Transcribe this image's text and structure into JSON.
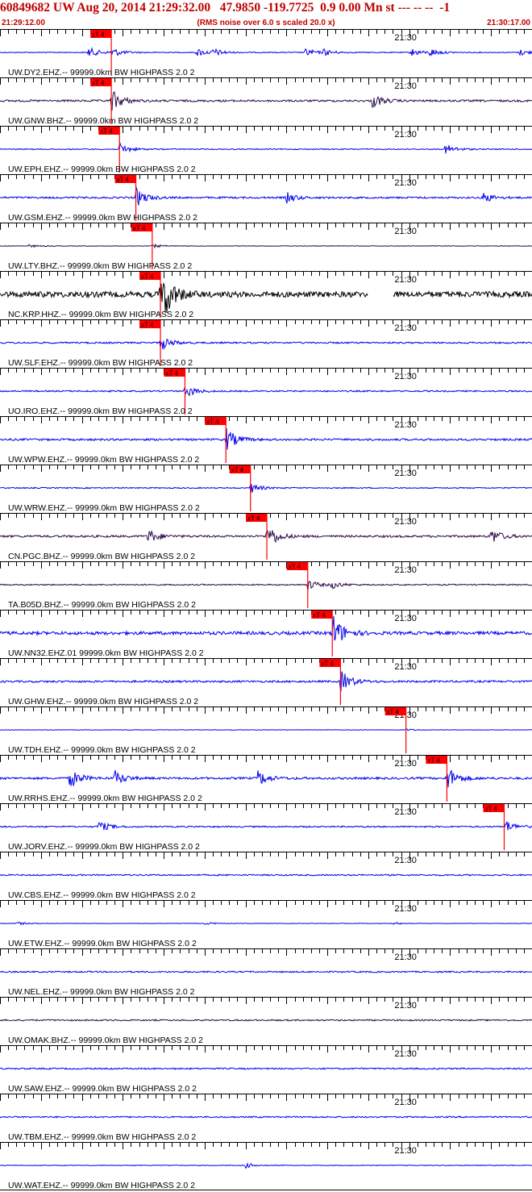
{
  "header": {
    "title": "60849682 UW Aug 20, 2014 21:29:32.00   47.9850 -119.7725  0.9 0.00 Mn st --- -- --  -1",
    "start_time": "21:29:12.00",
    "note": "(RMS noise over 6.0 s scaled 20.0 x)",
    "end_time": "21:30:17.00"
  },
  "colors": {
    "header_text": "#c00000",
    "pick_marker": "#ff0000",
    "trace_blue": "#0000ee",
    "trace_purple": "#2a0a4a",
    "trace_black": "#000000",
    "grid": "#000000"
  },
  "chart_data": {
    "type": "line",
    "title": "60849682 UW Aug 20, 2014 21:29:32.00   47.9850 -119.7725  0.9 0.00 Mn st --- -- --  -1",
    "x_unit": "seconds after 21:29:12.00",
    "xlim": [
      0,
      65
    ],
    "time_marker": {
      "label": "21:30",
      "x": 48
    },
    "tick_interval_s": 1,
    "grid": true,
    "pick_label": "xT 4",
    "series": [
      {
        "name": "UW.DY2.EHZ.-- 99999.0km BW  HIGHPASS  2.0  2",
        "color": "#0000ee",
        "pick_s": 13.6,
        "amp": 0.25,
        "events": [
          [
            10.8,
            1.0
          ],
          [
            13.6,
            0.9
          ],
          [
            24.0,
            0.8
          ],
          [
            26.0,
            0.7
          ],
          [
            37.3,
            0.8
          ],
          [
            39.5,
            0.6
          ],
          [
            50.2,
            0.8
          ],
          [
            52.5,
            0.7
          ],
          [
            63.5,
            0.6
          ]
        ]
      },
      {
        "name": "UW.GNW.BHZ.-- 99999.0km BW  HIGHPASS  2.0  2",
        "color": "#2a0a4a",
        "pick_s": 13.6,
        "amp": 0.55,
        "events": [
          [
            13.6,
            1.0
          ],
          [
            45.5,
            0.6
          ]
        ]
      },
      {
        "name": "UW.EPH.EHZ.-- 99999.0km BW  HIGHPASS  2.0  2",
        "color": "#0000ee",
        "pick_s": 14.6,
        "amp": 0.28,
        "events": [
          [
            14.6,
            1.0
          ],
          [
            54.4,
            0.9
          ]
        ]
      },
      {
        "name": "UW.GSM.EHZ.-- 99999.0km BW  HIGHPASS  2.0  2",
        "color": "#0000ee",
        "pick_s": 16.6,
        "amp": 0.5,
        "events": [
          [
            16.6,
            0.9
          ],
          [
            35.0,
            0.5
          ],
          [
            59.0,
            0.5
          ]
        ]
      },
      {
        "name": "UW.LTY.BHZ.-- 99999.0km BW  HIGHPASS  2.0  2",
        "color": "#2a0a4a",
        "pick_s": 18.6,
        "amp": 0.15,
        "events": [
          [
            3.5,
            0.4
          ],
          [
            18.6,
            0.6
          ]
        ]
      },
      {
        "name": "NC.KRP.HHZ.-- 99999.0km BW  HIGHPASS  2.0  2",
        "color": "#000000",
        "pick_s": 19.6,
        "amp": 1.6,
        "events": [
          [
            19.6,
            1.0
          ]
        ],
        "gap": [
          45.0,
          48.0
        ]
      },
      {
        "name": "UW.SLF.EHZ.-- 99999.0km BW  HIGHPASS  2.0  2",
        "color": "#0000ee",
        "pick_s": 19.6,
        "amp": 0.45,
        "events": [
          [
            19.6,
            0.8
          ]
        ]
      },
      {
        "name": "UO.IRO.EHZ.-- 99999.0km BW  HIGHPASS  2.0  2",
        "color": "#0000ee",
        "pick_s": 22.6,
        "amp": 0.4,
        "events": [
          [
            22.6,
            0.8
          ]
        ]
      },
      {
        "name": "UW.WPW.EHZ.-- 99999.0km BW  HIGHPASS  2.0  2",
        "color": "#0000ee",
        "pick_s": 27.6,
        "amp": 0.55,
        "events": [
          [
            27.6,
            1.0
          ]
        ]
      },
      {
        "name": "UW.WRW.EHZ.-- 99999.0km BW  HIGHPASS  2.0  2",
        "color": "#0000ee",
        "pick_s": 30.6,
        "amp": 0.3,
        "events": [
          [
            30.6,
            0.8
          ]
        ]
      },
      {
        "name": "CN.PGC.BHZ.-- 99999.0km BW  HIGHPASS  2.0  2",
        "color": "#2a0a4a",
        "pick_s": 32.6,
        "amp": 0.6,
        "events": [
          [
            18.0,
            0.6
          ],
          [
            32.6,
            1.0
          ],
          [
            60.0,
            0.6
          ]
        ]
      },
      {
        "name": "TA.B05D.BHZ.-- 99999.0km BW  HIGHPASS  2.0  2",
        "color": "#2a0a4a",
        "pick_s": 37.6,
        "amp": 0.35,
        "events": [
          [
            37.6,
            0.7
          ],
          [
            40.5,
            0.5
          ]
        ]
      },
      {
        "name": "UW.NN32.EHZ.01 99999.0km BW  HIGHPASS  2.0  2",
        "color": "#0000ee",
        "pick_s": 40.6,
        "amp": 0.9,
        "events": [
          [
            40.6,
            1.0
          ]
        ]
      },
      {
        "name": "UW.GHW.EHZ.-- 99999.0km BW  HIGHPASS  2.0  2",
        "color": "#0000ee",
        "pick_s": 41.6,
        "amp": 0.55,
        "events": [
          [
            41.6,
            1.0
          ]
        ]
      },
      {
        "name": "UW.TDH.EHZ.-- 99999.0km BW  HIGHPASS  2.0  2",
        "color": "#0000ee",
        "pick_s": 49.6,
        "amp": 0.12,
        "events": [
          [
            49.6,
            0.4
          ]
        ]
      },
      {
        "name": "UW.RRHS.EHZ.-- 99999.0km BW  HIGHPASS  2.0  2",
        "color": "#0000ee",
        "pick_s": 54.6,
        "amp": 0.6,
        "events": [
          [
            8.5,
            0.8
          ],
          [
            14.0,
            0.6
          ],
          [
            31.5,
            0.6
          ],
          [
            54.6,
            1.0
          ]
        ]
      },
      {
        "name": "UW.JORV.EHZ.-- 99999.0km BW  HIGHPASS  2.0  2",
        "color": "#0000ee",
        "pick_s": 61.6,
        "amp": 0.4,
        "events": [
          [
            12.0,
            0.7
          ],
          [
            61.6,
            0.8
          ]
        ]
      },
      {
        "name": "UW.CBS.EHZ.-- 99999.0km BW  HIGHPASS  2.0  2",
        "color": "#0000ee",
        "pick_s": null,
        "amp": 0.4,
        "events": []
      },
      {
        "name": "UW.ETW.EHZ.-- 99999.0km BW  HIGHPASS  2.0  2",
        "color": "#0000ee",
        "pick_s": null,
        "amp": 0.12,
        "events": [
          [
            2.0,
            0.7
          ],
          [
            25.0,
            0.5
          ],
          [
            48.0,
            0.5
          ]
        ]
      },
      {
        "name": "UW.NEL.EHZ.-- 99999.0km BW  HIGHPASS  2.0  2",
        "color": "#0000ee",
        "pick_s": null,
        "amp": 0.4,
        "events": []
      },
      {
        "name": "UW.OMAK.BHZ.-- 99999.0km BW  HIGHPASS  2.0  2",
        "color": "#2a0a4a",
        "pick_s": null,
        "amp": 0.4,
        "events": []
      },
      {
        "name": "UW.SAW.EHZ.-- 99999.0km BW  HIGHPASS  2.0  2",
        "color": "#0000ee",
        "pick_s": null,
        "amp": 0.4,
        "events": []
      },
      {
        "name": "UW.TBM.EHZ.-- 99999.0km BW  HIGHPASS  2.0  2",
        "color": "#0000ee",
        "pick_s": null,
        "amp": 0.4,
        "events": []
      },
      {
        "name": "UW.WAT.EHZ.-- 99999.0km BW  HIGHPASS  2.0  2",
        "color": "#0000ee",
        "pick_s": null,
        "amp": 0.2,
        "events": [
          [
            30.0,
            0.6
          ]
        ]
      }
    ]
  }
}
